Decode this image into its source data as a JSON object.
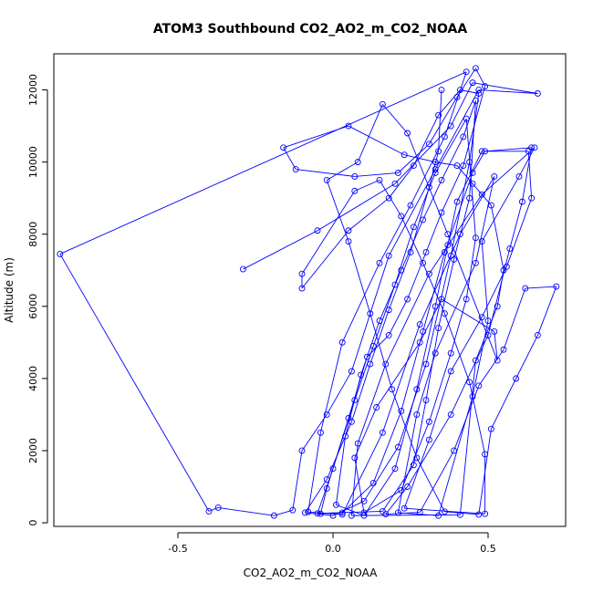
{
  "chart_data": {
    "type": "line",
    "title": "ATOM3 Southbound CO2_AO2_m_CO2_NOAA",
    "xlabel": "CO2_AO2_m_CO2_NOAA",
    "ylabel": "Altitude (m)",
    "xlim": [
      -0.9,
      0.75
    ],
    "ylim": [
      -100,
      13000
    ],
    "x_ticks": [
      -0.5,
      0.0,
      0.5
    ],
    "x_tick_labels": [
      "-0.5",
      "0.0",
      "0.5"
    ],
    "y_ticks": [
      0,
      2000,
      4000,
      6000,
      8000,
      10000,
      12000
    ],
    "y_tick_labels": [
      "0",
      "2000",
      "4000",
      "6000",
      "8000",
      "10000",
      "12000"
    ],
    "grid": false,
    "legend": "none",
    "series_color": "#0000ff",
    "marker": "open-circle",
    "series": [
      {
        "name": "",
        "points": [
          [
            -0.29,
            7030
          ],
          [
            -0.05,
            8100
          ],
          [
            0.2,
            9400
          ],
          [
            0.38,
            11000
          ],
          [
            0.45,
            12200
          ],
          [
            0.66,
            11900
          ],
          [
            0.47,
            12000
          ],
          [
            0.33,
            9800
          ],
          [
            0.18,
            7400
          ],
          [
            0.06,
            4200
          ],
          [
            -0.02,
            3000
          ],
          [
            -0.1,
            2000
          ],
          [
            -0.13,
            350
          ],
          [
            -0.19,
            200
          ],
          [
            -0.37,
            420
          ],
          [
            -0.4,
            320
          ],
          [
            -0.88,
            7450
          ],
          [
            0.43,
            12500
          ],
          [
            0.36,
            10700
          ],
          [
            0.25,
            8800
          ],
          [
            0.15,
            7200
          ],
          [
            0.03,
            5000
          ],
          [
            -0.04,
            2500
          ],
          [
            -0.08,
            300
          ],
          [
            0.03,
            230
          ],
          [
            0.16,
            2500
          ],
          [
            0.28,
            5500
          ],
          [
            0.41,
            8000
          ],
          [
            0.52,
            9600
          ],
          [
            0.46,
            7200
          ],
          [
            0.33,
            4700
          ],
          [
            0.27,
            3000
          ],
          [
            0.21,
            280
          ],
          [
            0.34,
            200
          ],
          [
            0.45,
            3500
          ],
          [
            0.5,
            5600
          ],
          [
            0.48,
            7800
          ],
          [
            0.6,
            9600
          ],
          [
            0.65,
            10400
          ],
          [
            0.48,
            9100
          ],
          [
            0.31,
            6900
          ],
          [
            0.17,
            4400
          ],
          [
            0.08,
            2200
          ],
          [
            0.06,
            200
          ],
          [
            0.41,
            220
          ],
          [
            0.46,
            4500
          ],
          [
            0.53,
            6000
          ],
          [
            0.55,
            7000
          ],
          [
            0.51,
            8800
          ],
          [
            0.45,
            9400
          ],
          [
            0.4,
            9900
          ],
          [
            0.33,
            10000
          ],
          [
            0.23,
            10200
          ],
          [
            0.05,
            11000
          ],
          [
            -0.16,
            10400
          ],
          [
            -0.12,
            9800
          ],
          [
            0.07,
            9600
          ],
          [
            0.21,
            9700
          ],
          [
            0.31,
            10500
          ],
          [
            0.4,
            11800
          ],
          [
            0.46,
            12600
          ],
          [
            0.49,
            12100
          ],
          [
            0.42,
            9900
          ],
          [
            0.35,
            8600
          ],
          [
            0.3,
            7500
          ],
          [
            0.24,
            6200
          ],
          [
            0.18,
            5200
          ],
          [
            0.11,
            4600
          ],
          [
            0.05,
            2900
          ],
          [
            -0.02,
            950
          ],
          [
            -0.04,
            250
          ],
          [
            0.03,
            280
          ],
          [
            0.13,
            1100
          ],
          [
            0.22,
            3100
          ],
          [
            0.29,
            5300
          ],
          [
            0.36,
            7500
          ],
          [
            0.45,
            9700
          ],
          [
            0.49,
            10300
          ],
          [
            0.64,
            10400
          ],
          [
            0.61,
            8900
          ],
          [
            0.57,
            7600
          ],
          [
            0.5,
            5200
          ],
          [
            0.38,
            3000
          ],
          [
            0.24,
            1000
          ],
          [
            0.17,
            240
          ],
          [
            0.28,
            290
          ],
          [
            0.39,
            2000
          ],
          [
            0.47,
            3800
          ],
          [
            0.55,
            4800
          ],
          [
            0.62,
            6500
          ],
          [
            0.72,
            6550
          ],
          [
            0.66,
            5200
          ],
          [
            0.59,
            4000
          ],
          [
            0.51,
            2600
          ],
          [
            0.47,
            230
          ],
          [
            0.36,
            310
          ],
          [
            0.27,
            1800
          ],
          [
            0.19,
            3700
          ],
          [
            0.12,
            5800
          ],
          [
            0.05,
            7800
          ],
          [
            -0.02,
            9500
          ],
          [
            0.08,
            10000
          ],
          [
            0.16,
            11600
          ],
          [
            0.24,
            10800
          ],
          [
            0.37,
            8000
          ],
          [
            0.53,
            4500
          ],
          [
            0.52,
            5300
          ],
          [
            0.35,
            6200
          ],
          [
            0.28,
            5000
          ],
          [
            0.14,
            3200
          ],
          [
            0.07,
            1800
          ],
          [
            0.1,
            280
          ],
          [
            0.22,
            900
          ],
          [
            0.31,
            2800
          ],
          [
            0.38,
            4700
          ],
          [
            0.43,
            6200
          ],
          [
            0.46,
            7900
          ],
          [
            0.43,
            11200
          ],
          [
            0.33,
            9700
          ],
          [
            0.26,
            8200
          ],
          [
            0.2,
            6600
          ],
          [
            0.13,
            4900
          ],
          [
            0.07,
            3400
          ],
          [
            0.0,
            1500
          ],
          [
            -0.05,
            260
          ],
          [
            0.16,
            320
          ],
          [
            0.26,
            1600
          ],
          [
            0.3,
            3400
          ],
          [
            0.34,
            5400
          ],
          [
            0.39,
            7300
          ],
          [
            0.44,
            9000
          ],
          [
            0.46,
            11700
          ],
          [
            0.42,
            10700
          ],
          [
            0.35,
            9500
          ],
          [
            0.29,
            8400
          ],
          [
            0.22,
            7000
          ],
          [
            0.15,
            5600
          ],
          [
            0.09,
            4100
          ],
          [
            0.04,
            2400
          ],
          [
            0.01,
            500
          ],
          [
            0.1,
            200
          ],
          [
            0.2,
            1500
          ],
          [
            0.27,
            3700
          ],
          [
            0.33,
            6000
          ],
          [
            0.37,
            7700
          ],
          [
            0.4,
            8900
          ],
          [
            0.48,
            10300
          ],
          [
            0.63,
            10300
          ],
          [
            0.64,
            9000
          ],
          [
            0.56,
            7100
          ],
          [
            0.48,
            5700
          ],
          [
            0.38,
            4200
          ],
          [
            0.31,
            2300
          ],
          [
            0.23,
            400
          ],
          [
            0.49,
            250
          ],
          [
            0.49,
            1900
          ],
          [
            0.44,
            3900
          ],
          [
            0.36,
            5800
          ],
          [
            0.29,
            7200
          ],
          [
            0.22,
            8500
          ],
          [
            0.15,
            9500
          ],
          [
            0.07,
            9200
          ],
          [
            -0.1,
            6900
          ],
          [
            -0.1,
            6500
          ],
          [
            0.05,
            8100
          ],
          [
            0.18,
            9000
          ],
          [
            0.26,
            9900
          ],
          [
            0.34,
            11300
          ],
          [
            0.41,
            12000
          ],
          [
            0.47,
            11900
          ],
          [
            0.44,
            10000
          ],
          [
            0.38,
            7400
          ],
          [
            0.3,
            4400
          ],
          [
            0.21,
            2100
          ],
          [
            0.1,
            600
          ],
          [
            0.0,
            200
          ],
          [
            -0.09,
            280
          ],
          [
            -0.02,
            1200
          ],
          [
            0.06,
            2800
          ],
          [
            0.12,
            4400
          ],
          [
            0.18,
            5900
          ],
          [
            0.25,
            7500
          ],
          [
            0.31,
            9300
          ],
          [
            0.34,
            10300
          ],
          [
            0.35,
            12000
          ]
        ]
      }
    ]
  }
}
